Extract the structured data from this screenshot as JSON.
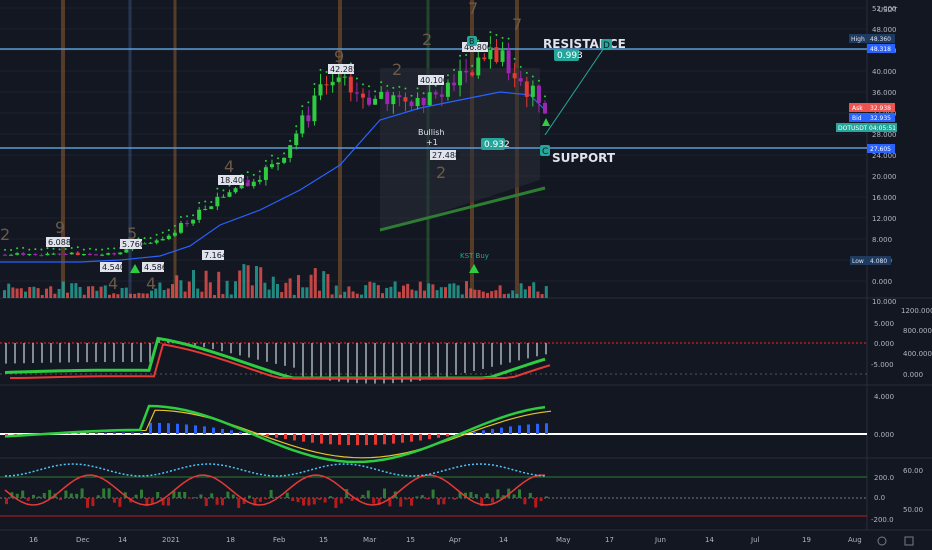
{
  "price_axis": {
    "currency": "USDT",
    "ticks": [
      "52.000",
      "48.000",
      "44.000",
      "40.000",
      "36.000",
      "32.000",
      "28.000",
      "24.000",
      "20.000",
      "16.000",
      "12.000",
      "8.000",
      "4.000",
      "0.000"
    ],
    "high_label": "High",
    "high_value": "48.360",
    "high_line": "48.318",
    "ask_label": "Ask",
    "ask_value": "32.938",
    "bid_label": "Bid",
    "bid_value": "32.935",
    "symbol_label": "DOTUSDT",
    "countdown": "04:05:51",
    "support_value": "27.605",
    "low_label": "Low",
    "low_value": "4.080"
  },
  "panes": {
    "pane1_ticks": [
      "10.000",
      "5.000",
      "0.000",
      "-5.000"
    ],
    "pane1_right_ticks": [
      "1200.000",
      "800.000",
      "400.000",
      "0.000"
    ],
    "pane2_ticks": [
      "4.000",
      "0.000"
    ],
    "pane3_ticks": [
      "200.0",
      "0.0",
      "-200.0"
    ],
    "pane3_right_ticks": [
      "60.00",
      "50.00"
    ]
  },
  "time_axis": [
    "16",
    "Dec",
    "14",
    "2021",
    "18",
    "Feb",
    "15",
    "Mar",
    "15",
    "Apr",
    "14",
    "May",
    "17",
    "Jun",
    "14",
    "Jul",
    "19",
    "Aug"
  ],
  "annotations": {
    "resistance": "RESISTANCE",
    "resistance_marker": "D",
    "resistance_ratio": "0.993",
    "support": "SUPPORT",
    "support_marker": "C",
    "support_ratio": "0.932",
    "bullish_label": "Bullish",
    "bullish_value": "+1",
    "kst_buy": "KST Buy",
    "peak_a": "B",
    "price_labels": [
      "6.088",
      "5.760",
      "4.540",
      "4.586",
      "7.164",
      "18.400",
      "42.285",
      "40.100",
      "46.800",
      "27.488"
    ],
    "count_labels": [
      "9",
      "5",
      "4",
      "9",
      "2",
      "2",
      "7",
      "7",
      "7",
      "2",
      "4",
      "4",
      "2"
    ]
  },
  "chart_data": {
    "type": "candlestick",
    "symbol": "DOTUSDT",
    "x": [
      "16",
      "Dec",
      "14",
      "2021",
      "18",
      "Feb",
      "15",
      "Mar",
      "15",
      "Apr",
      "14"
    ],
    "close_estimates": [
      5.0,
      5.3,
      5.0,
      8.5,
      16.5,
      22,
      38,
      34,
      36,
      44,
      32.9
    ],
    "ylim": [
      0,
      52
    ],
    "resistance": 48.318,
    "support": 27.605,
    "high": 48.36,
    "low": 4.08,
    "ask": 32.938,
    "bid": 32.935,
    "fib_resistance_ratio": 0.993,
    "fib_support_ratio": 0.932
  },
  "colors": {
    "background": "#131722",
    "bull": "#26a69a",
    "bear": "#ef5350",
    "resistance_line": "#5b9bd5",
    "support_line": "#5b9bd5",
    "label_green": "#26a69a",
    "axis_text": "#b2b5be"
  }
}
